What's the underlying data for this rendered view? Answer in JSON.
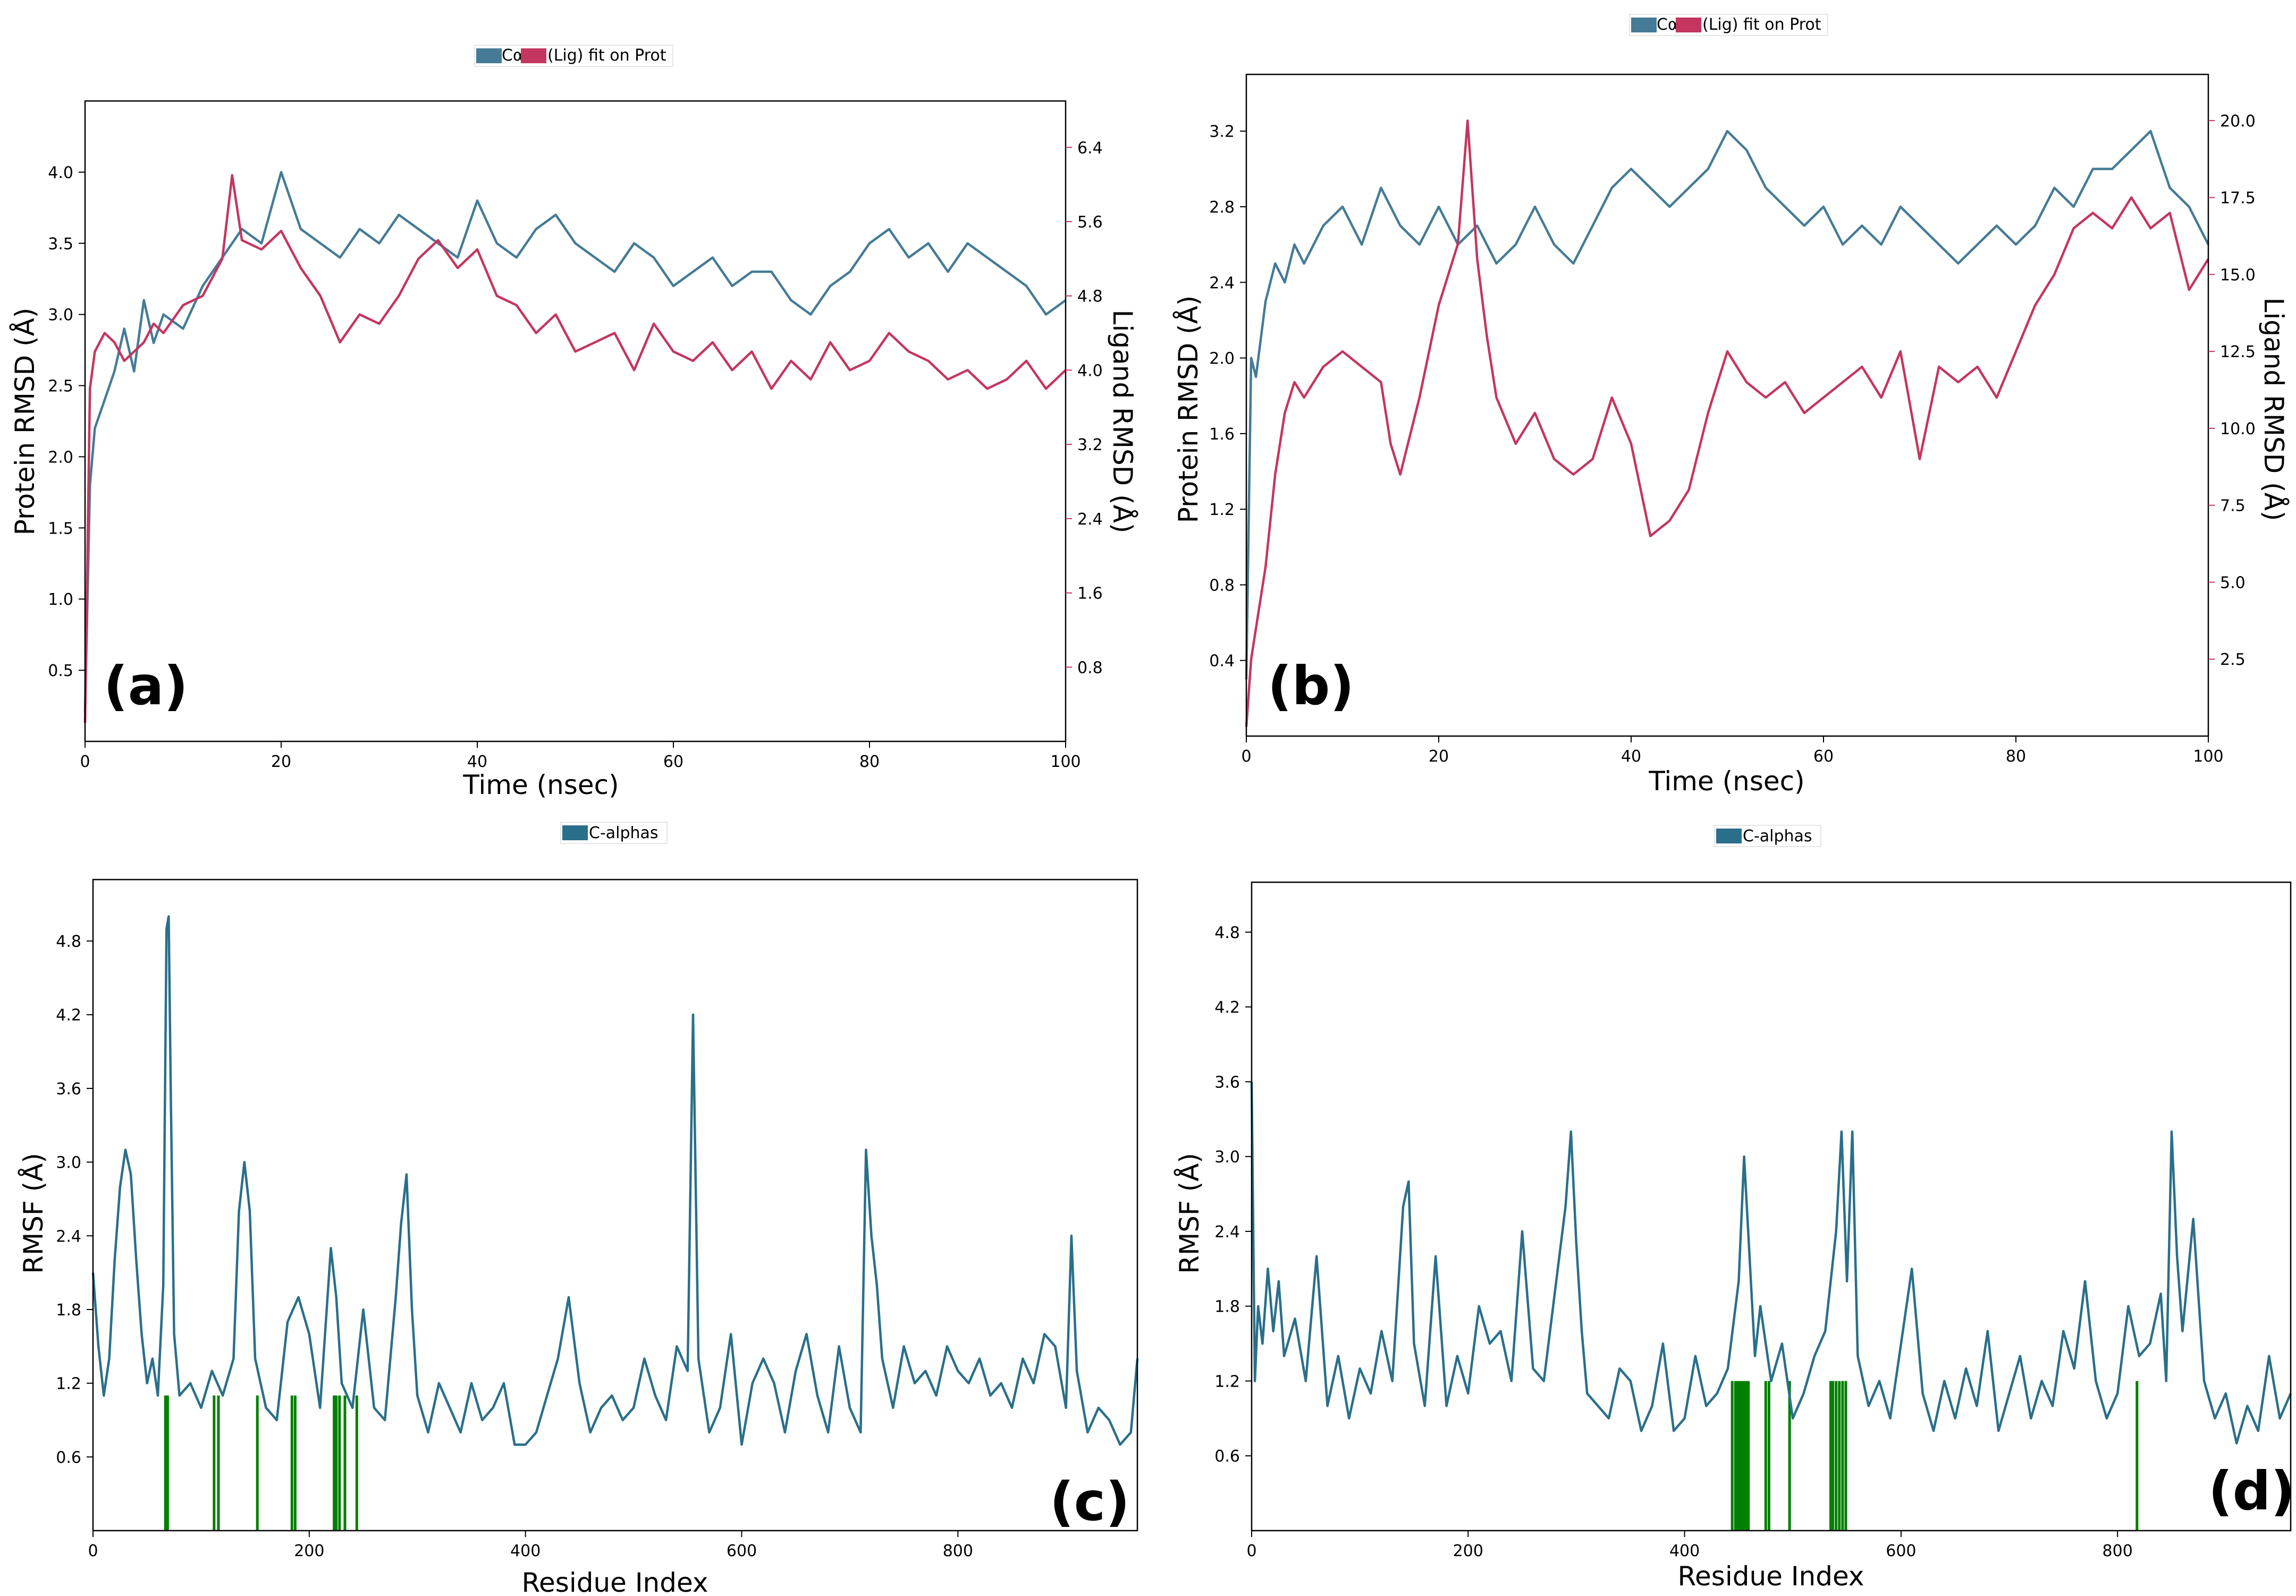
{
  "colors": {
    "protein": "#457b96",
    "ligand": "#c4365f",
    "rmsf": "#2a6f8a",
    "contact": "#008000"
  },
  "chart_data": [
    {
      "id": "a",
      "type": "line",
      "panel_label": "(a)",
      "legend": [
        "Cα",
        "(Lig) fit on Prot"
      ],
      "xlabel": "Time (nsec)",
      "ylabel": "Protein RMSD (Å)",
      "y2label": "Ligand RMSD (Å)",
      "xlim": [
        0,
        100
      ],
      "ylim": [
        0,
        4.5
      ],
      "y2lim": [
        0,
        6.9
      ],
      "xticks": [
        0,
        20,
        40,
        60,
        80,
        100
      ],
      "yticks": [
        0.5,
        1.0,
        1.5,
        2.0,
        2.5,
        3.0,
        3.5,
        4.0
      ],
      "y2ticks": [
        0.8,
        1.6,
        2.4,
        3.2,
        4.0,
        4.8,
        5.6,
        6.4
      ],
      "series": [
        {
          "name": "Cα",
          "axis": "left",
          "x": [
            0,
            0.5,
            1,
            2,
            3,
            4,
            5,
            6,
            7,
            8,
            10,
            12,
            14,
            16,
            18,
            20,
            22,
            24,
            26,
            28,
            30,
            32,
            34,
            36,
            38,
            40,
            42,
            44,
            46,
            48,
            50,
            52,
            54,
            56,
            58,
            60,
            62,
            64,
            66,
            68,
            70,
            72,
            74,
            76,
            78,
            80,
            82,
            84,
            86,
            88,
            90,
            92,
            94,
            96,
            98,
            100
          ],
          "y": [
            0.2,
            1.8,
            2.2,
            2.4,
            2.6,
            2.9,
            2.6,
            3.1,
            2.8,
            3.0,
            2.9,
            3.2,
            3.4,
            3.6,
            3.5,
            4.0,
            3.6,
            3.5,
            3.4,
            3.6,
            3.5,
            3.7,
            3.6,
            3.5,
            3.4,
            3.8,
            3.5,
            3.4,
            3.6,
            3.7,
            3.5,
            3.4,
            3.3,
            3.5,
            3.4,
            3.2,
            3.3,
            3.4,
            3.2,
            3.3,
            3.3,
            3.1,
            3.0,
            3.2,
            3.3,
            3.5,
            3.6,
            3.4,
            3.5,
            3.3,
            3.5,
            3.4,
            3.3,
            3.2,
            3.0,
            3.1
          ]
        },
        {
          "name": "(Lig) fit on Prot",
          "axis": "right",
          "x": [
            0,
            0.5,
            1,
            2,
            3,
            4,
            5,
            6,
            7,
            8,
            10,
            12,
            14,
            15,
            16,
            18,
            20,
            22,
            24,
            26,
            28,
            30,
            32,
            34,
            36,
            38,
            40,
            42,
            44,
            46,
            48,
            50,
            52,
            54,
            56,
            58,
            60,
            62,
            64,
            66,
            68,
            70,
            72,
            74,
            76,
            78,
            80,
            82,
            84,
            86,
            88,
            90,
            92,
            94,
            96,
            98,
            100
          ],
          "y": [
            0.2,
            3.8,
            4.2,
            4.4,
            4.3,
            4.1,
            4.2,
            4.3,
            4.5,
            4.4,
            4.7,
            4.8,
            5.2,
            6.1,
            5.4,
            5.3,
            5.5,
            5.1,
            4.8,
            4.3,
            4.6,
            4.5,
            4.8,
            5.2,
            5.4,
            5.1,
            5.3,
            4.8,
            4.7,
            4.4,
            4.6,
            4.2,
            4.3,
            4.4,
            4.0,
            4.5,
            4.2,
            4.1,
            4.3,
            4.0,
            4.2,
            3.8,
            4.1,
            3.9,
            4.3,
            4.0,
            4.1,
            4.4,
            4.2,
            4.1,
            3.9,
            4.0,
            3.8,
            3.9,
            4.1,
            3.8,
            4.0
          ]
        }
      ]
    },
    {
      "id": "b",
      "type": "line",
      "panel_label": "(b)",
      "legend": [
        "Cα",
        "(Lig) fit on Prot"
      ],
      "xlabel": "Time (nsec)",
      "ylabel": "Protein RMSD (Å)",
      "y2label": "Ligand RMSD (Å)",
      "xlim": [
        0,
        100
      ],
      "ylim": [
        0,
        3.5
      ],
      "y2lim": [
        0,
        21.5
      ],
      "xticks": [
        0,
        20,
        40,
        60,
        80,
        100
      ],
      "yticks": [
        0.4,
        0.8,
        1.2,
        1.6,
        2.0,
        2.4,
        2.8,
        3.2
      ],
      "y2ticks": [
        2.5,
        5.0,
        7.5,
        10.0,
        12.5,
        15.0,
        17.5,
        20.0
      ],
      "series": [
        {
          "name": "Cα",
          "axis": "left",
          "x": [
            0,
            0.5,
            1,
            2,
            3,
            4,
            5,
            6,
            8,
            10,
            12,
            14,
            16,
            18,
            20,
            22,
            24,
            26,
            28,
            30,
            32,
            34,
            36,
            38,
            40,
            42,
            44,
            46,
            48,
            50,
            52,
            54,
            56,
            58,
            60,
            62,
            64,
            66,
            68,
            70,
            72,
            74,
            76,
            78,
            80,
            82,
            84,
            86,
            88,
            90,
            92,
            94,
            96,
            98,
            100
          ],
          "y": [
            0.3,
            2.0,
            1.9,
            2.3,
            2.5,
            2.4,
            2.6,
            2.5,
            2.7,
            2.8,
            2.6,
            2.9,
            2.7,
            2.6,
            2.8,
            2.6,
            2.7,
            2.5,
            2.6,
            2.8,
            2.6,
            2.5,
            2.7,
            2.9,
            3.0,
            2.9,
            2.8,
            2.9,
            3.0,
            3.2,
            3.1,
            2.9,
            2.8,
            2.7,
            2.8,
            2.6,
            2.7,
            2.6,
            2.8,
            2.7,
            2.6,
            2.5,
            2.6,
            2.7,
            2.6,
            2.7,
            2.9,
            2.8,
            3.0,
            3.0,
            3.1,
            3.2,
            2.9,
            2.8,
            2.6
          ]
        },
        {
          "name": "(Lig) fit on Prot",
          "axis": "right",
          "x": [
            0,
            0.5,
            1,
            2,
            3,
            4,
            5,
            6,
            8,
            10,
            12,
            14,
            15,
            16,
            18,
            20,
            22,
            23,
            24,
            25,
            26,
            28,
            30,
            32,
            34,
            36,
            38,
            40,
            42,
            44,
            46,
            48,
            50,
            52,
            54,
            56,
            58,
            60,
            62,
            64,
            66,
            68,
            70,
            72,
            74,
            76,
            78,
            80,
            82,
            84,
            86,
            88,
            90,
            92,
            94,
            96,
            98,
            100
          ],
          "y": [
            0.3,
            2.5,
            3.5,
            5.5,
            8.5,
            10.5,
            11.5,
            11.0,
            12.0,
            12.5,
            12.0,
            11.5,
            9.5,
            8.5,
            11.0,
            14.0,
            16.0,
            20.0,
            15.5,
            13.0,
            11.0,
            9.5,
            10.5,
            9.0,
            8.5,
            9.0,
            11.0,
            9.5,
            6.5,
            7.0,
            8.0,
            10.5,
            12.5,
            11.5,
            11.0,
            11.5,
            10.5,
            11.0,
            11.5,
            12.0,
            11.0,
            12.5,
            9.0,
            12.0,
            11.5,
            12.0,
            11.0,
            12.5,
            14.0,
            15.0,
            16.5,
            17.0,
            16.5,
            17.5,
            16.5,
            17.0,
            14.5,
            15.5
          ]
        }
      ]
    },
    {
      "id": "c",
      "type": "line",
      "panel_label": "(c)",
      "legend": [
        "C-alphas"
      ],
      "xlabel": "Residue Index",
      "ylabel": "RMSF (Å)",
      "xlim": [
        0,
        966
      ],
      "ylim": [
        0,
        5.3
      ],
      "xticks": [
        0,
        200,
        400,
        600,
        800
      ],
      "yticks": [
        0.6,
        1.2,
        1.8,
        2.4,
        3.0,
        3.6,
        4.2,
        4.8
      ],
      "series": [
        {
          "name": "C-alphas",
          "x": [
            0,
            5,
            10,
            15,
            20,
            25,
            30,
            35,
            40,
            45,
            50,
            55,
            60,
            65,
            68,
            70,
            72,
            75,
            80,
            90,
            100,
            110,
            120,
            130,
            135,
            140,
            145,
            150,
            160,
            170,
            180,
            190,
            200,
            210,
            220,
            225,
            230,
            240,
            250,
            260,
            270,
            280,
            285,
            290,
            295,
            300,
            310,
            320,
            330,
            340,
            350,
            360,
            370,
            380,
            390,
            400,
            410,
            420,
            430,
            440,
            450,
            460,
            470,
            480,
            490,
            500,
            510,
            520,
            530,
            540,
            550,
            555,
            560,
            570,
            580,
            590,
            600,
            610,
            620,
            630,
            640,
            650,
            660,
            670,
            680,
            690,
            700,
            710,
            715,
            720,
            725,
            730,
            740,
            750,
            760,
            770,
            780,
            790,
            800,
            810,
            820,
            830,
            840,
            850,
            860,
            870,
            880,
            890,
            900,
            905,
            910,
            920,
            930,
            940,
            950,
            960,
            966
          ],
          "y": [
            2.1,
            1.5,
            1.1,
            1.4,
            2.2,
            2.8,
            3.1,
            2.9,
            2.2,
            1.6,
            1.2,
            1.4,
            1.1,
            2.0,
            4.9,
            5.0,
            3.5,
            1.6,
            1.1,
            1.2,
            1.0,
            1.3,
            1.1,
            1.4,
            2.6,
            3.0,
            2.6,
            1.4,
            1.0,
            0.9,
            1.7,
            1.9,
            1.6,
            1.0,
            2.3,
            1.9,
            1.2,
            1.0,
            1.8,
            1.0,
            0.9,
            1.9,
            2.5,
            2.9,
            1.8,
            1.1,
            0.8,
            1.2,
            1.0,
            0.8,
            1.2,
            0.9,
            1.0,
            1.2,
            0.7,
            0.7,
            0.8,
            1.1,
            1.4,
            1.9,
            1.2,
            0.8,
            1.0,
            1.1,
            0.9,
            1.0,
            1.4,
            1.1,
            0.9,
            1.5,
            1.3,
            4.2,
            1.4,
            0.8,
            1.0,
            1.6,
            0.7,
            1.2,
            1.4,
            1.2,
            0.8,
            1.3,
            1.6,
            1.1,
            0.8,
            1.5,
            1.0,
            0.8,
            3.1,
            2.4,
            2.0,
            1.4,
            1.0,
            1.5,
            1.2,
            1.3,
            1.1,
            1.5,
            1.3,
            1.2,
            1.4,
            1.1,
            1.2,
            1.0,
            1.4,
            1.2,
            1.6,
            1.5,
            1.0,
            2.4,
            1.3,
            0.8,
            1.0,
            0.9,
            0.7,
            0.8,
            1.4
          ]
        }
      ],
      "contacts": [
        67,
        69,
        112,
        116,
        152,
        184,
        187,
        223,
        225,
        228,
        233,
        244
      ],
      "contact_height": 1.1
    },
    {
      "id": "d",
      "type": "line",
      "panel_label": "(d)",
      "legend": [
        "C-alphas"
      ],
      "xlabel": "Residue Index",
      "ylabel": "RMSF (Å)",
      "xlim": [
        0,
        960
      ],
      "ylim": [
        0,
        5.2
      ],
      "xticks": [
        0,
        200,
        400,
        600,
        800
      ],
      "yticks": [
        0.6,
        1.2,
        1.8,
        2.4,
        3.0,
        3.6,
        4.2,
        4.8
      ],
      "series": [
        {
          "name": "C-alphas",
          "x": [
            0,
            3,
            6,
            10,
            15,
            20,
            25,
            30,
            40,
            50,
            60,
            70,
            80,
            90,
            100,
            110,
            120,
            130,
            140,
            145,
            150,
            160,
            170,
            180,
            190,
            200,
            210,
            220,
            230,
            240,
            250,
            260,
            270,
            280,
            290,
            295,
            300,
            305,
            310,
            320,
            330,
            340,
            350,
            360,
            370,
            380,
            390,
            400,
            410,
            420,
            430,
            440,
            450,
            455,
            460,
            465,
            470,
            480,
            490,
            500,
            510,
            520,
            530,
            540,
            545,
            550,
            555,
            560,
            570,
            580,
            590,
            600,
            610,
            620,
            630,
            640,
            650,
            660,
            670,
            680,
            690,
            700,
            710,
            720,
            730,
            740,
            750,
            760,
            770,
            780,
            790,
            800,
            810,
            820,
            830,
            840,
            845,
            850,
            855,
            860,
            870,
            880,
            890,
            900,
            910,
            920,
            930,
            940,
            950,
            960
          ],
          "y": [
            3.6,
            1.2,
            1.8,
            1.5,
            2.1,
            1.6,
            2.0,
            1.4,
            1.7,
            1.2,
            2.2,
            1.0,
            1.4,
            0.9,
            1.3,
            1.1,
            1.6,
            1.2,
            2.6,
            2.8,
            1.5,
            1.0,
            2.2,
            1.0,
            1.4,
            1.1,
            1.8,
            1.5,
            1.6,
            1.2,
            2.4,
            1.3,
            1.2,
            1.9,
            2.6,
            3.2,
            2.3,
            1.6,
            1.1,
            1.0,
            0.9,
            1.3,
            1.2,
            0.8,
            1.0,
            1.5,
            0.8,
            0.9,
            1.4,
            1.0,
            1.1,
            1.3,
            2.0,
            3.0,
            2.2,
            1.4,
            1.8,
            1.2,
            1.5,
            0.9,
            1.1,
            1.4,
            1.6,
            2.4,
            3.2,
            2.0,
            3.2,
            1.4,
            1.0,
            1.2,
            0.9,
            1.5,
            2.1,
            1.1,
            0.8,
            1.2,
            0.9,
            1.3,
            1.0,
            1.6,
            0.8,
            1.1,
            1.4,
            0.9,
            1.2,
            1.0,
            1.6,
            1.3,
            2.0,
            1.2,
            0.9,
            1.1,
            1.8,
            1.4,
            1.5,
            1.9,
            1.2,
            3.2,
            2.2,
            1.6,
            2.5,
            1.2,
            0.9,
            1.1,
            0.7,
            1.0,
            0.8,
            1.4,
            0.9,
            1.1
          ]
        }
      ],
      "contacts": [
        444,
        447,
        449,
        451,
        453,
        455,
        457,
        459,
        475,
        478,
        497,
        535,
        537,
        540,
        543,
        546,
        549,
        818
      ],
      "contact_height": 1.2
    }
  ]
}
